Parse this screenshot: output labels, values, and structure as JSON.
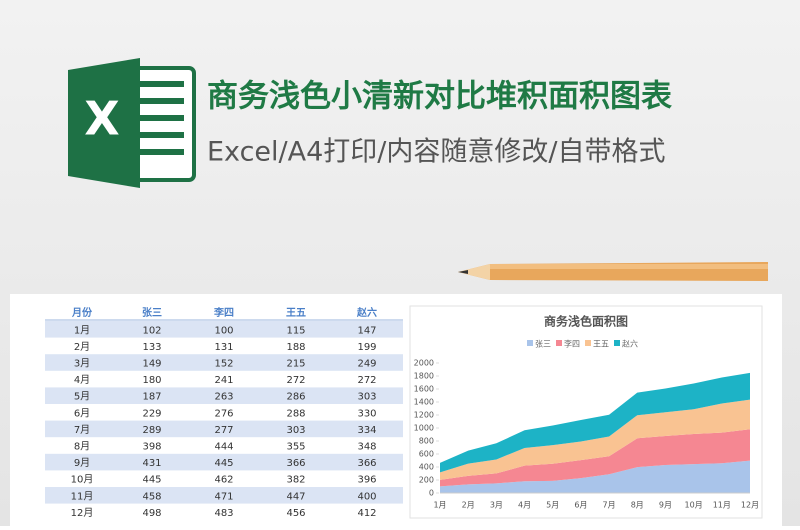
{
  "header": {
    "title": "商务浅色小清新对比堆积面积图表",
    "subtitle": "Excel/A4打印/内容随意修改/自带格式"
  },
  "table": {
    "columns": [
      "月份",
      "张三",
      "李四",
      "王五",
      "赵六"
    ],
    "rows": [
      [
        "1月",
        102,
        100,
        115,
        147
      ],
      [
        "2月",
        133,
        131,
        188,
        199
      ],
      [
        "3月",
        149,
        152,
        215,
        249
      ],
      [
        "4月",
        180,
        241,
        272,
        272
      ],
      [
        "5月",
        187,
        263,
        286,
        303
      ],
      [
        "6月",
        229,
        276,
        288,
        330
      ],
      [
        "7月",
        289,
        277,
        303,
        334
      ],
      [
        "8月",
        398,
        444,
        355,
        348
      ],
      [
        "9月",
        431,
        445,
        366,
        366
      ],
      [
        "10月",
        445,
        462,
        382,
        396
      ],
      [
        "11月",
        458,
        471,
        447,
        400
      ],
      [
        "12月",
        498,
        483,
        456,
        412
      ]
    ]
  },
  "chart_data": {
    "type": "stacked_area",
    "title": "商务浅色面积图",
    "categories": [
      "1月",
      "2月",
      "3月",
      "4月",
      "5月",
      "6月",
      "7月",
      "8月",
      "9月",
      "10月",
      "11月",
      "12月"
    ],
    "series": [
      {
        "name": "张三",
        "color": "#a9c4ea",
        "values": [
          102,
          133,
          149,
          180,
          187,
          229,
          289,
          398,
          431,
          445,
          458,
          498
        ]
      },
      {
        "name": "李四",
        "color": "#f58792",
        "values": [
          100,
          131,
          152,
          241,
          263,
          276,
          277,
          444,
          445,
          462,
          471,
          483
        ]
      },
      {
        "name": "王五",
        "color": "#f9c392",
        "values": [
          115,
          188,
          215,
          272,
          286,
          288,
          303,
          355,
          366,
          382,
          447,
          456
        ]
      },
      {
        "name": "赵六",
        "color": "#1db3c6",
        "values": [
          147,
          199,
          249,
          272,
          303,
          330,
          334,
          348,
          366,
          396,
          400,
          412
        ]
      }
    ],
    "ylim": [
      0,
      2000
    ],
    "yticks": [
      0,
      200,
      400,
      600,
      800,
      1000,
      1200,
      1400,
      1600,
      1800,
      2000
    ],
    "legend": "top",
    "grid": false
  }
}
